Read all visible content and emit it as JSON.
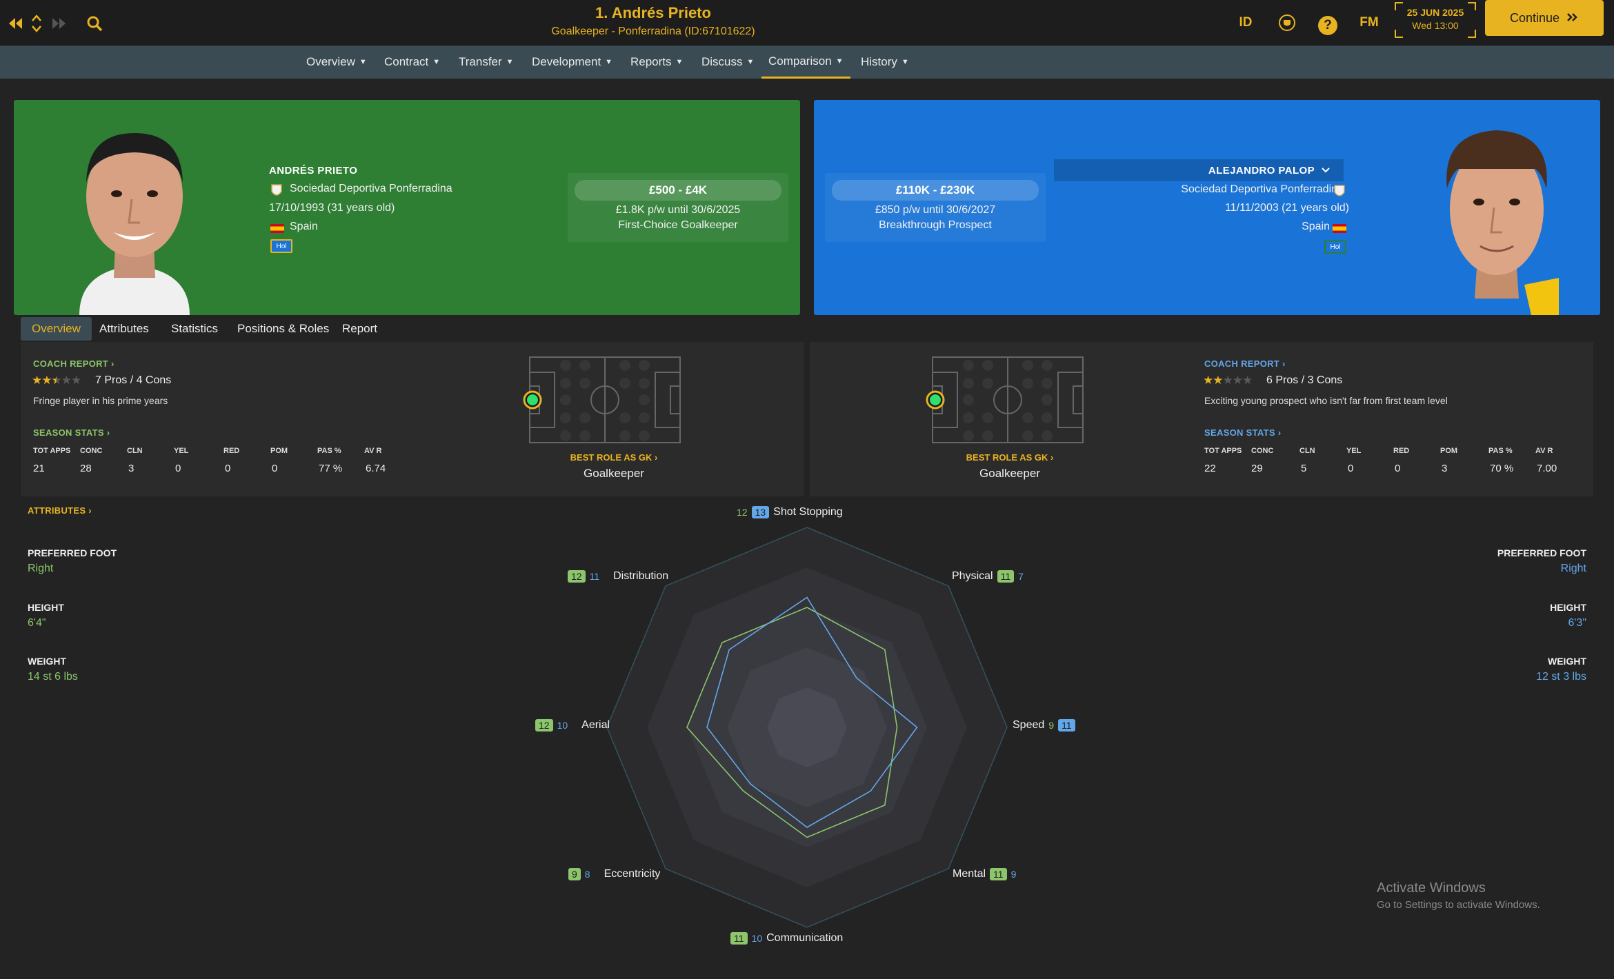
{
  "topbar": {
    "title": "1. Andrés Prieto",
    "subtitle": "Goalkeeper - Ponferradina (ID:67101622)",
    "id_label": "ID",
    "fm_label": "FM",
    "help_label": "?",
    "date": "25 JUN 2025",
    "time": "Wed 13:00",
    "continue_label": "Continue"
  },
  "nav": [
    "Overview",
    "Contract",
    "Transfer",
    "Development",
    "Reports",
    "Discuss",
    "Comparison",
    "History"
  ],
  "nav_active": "Comparison",
  "left_player": {
    "name": "ANDRÉS PRIETO",
    "club": "Sociedad Deportiva Ponferradina",
    "dob": "17/10/1993 (31 years old)",
    "nationality": "Spain",
    "tag": "Hol",
    "value_range": "£500 - £4K",
    "wage": "£1.8K p/w until 30/6/2025",
    "status": "First-Choice Goalkeeper",
    "coach_report": "COACH REPORT",
    "stars": 2.5,
    "pros_cons": "7 Pros / 4 Cons",
    "description": "Fringe player in his prime years",
    "season_stats_title": "SEASON STATS",
    "best_role_title": "BEST ROLE AS GK",
    "best_role": "Goalkeeper",
    "preferred_foot": "Right",
    "height": "6'4\"",
    "weight": "14 st 6 lbs",
    "stats": {
      "TOT APPS": "21",
      "CONC": "28",
      "CLN": "3",
      "YEL": "0",
      "RED": "0",
      "POM": "0",
      "PAS %": "77 %",
      "AV R": "6.74"
    }
  },
  "right_player": {
    "name": "ALEJANDRO PALOP",
    "club": "Sociedad Deportiva Ponferradina",
    "dob": "11/11/2003 (21 years old)",
    "nationality": "Spain",
    "tag": "Hol",
    "value_range": "£110K - £230K",
    "wage": "£850 p/w until 30/6/2027",
    "status": "Breakthrough Prospect",
    "coach_report": "COACH REPORT",
    "stars": 2,
    "pros_cons": "6 Pros / 3 Cons",
    "description": "Exciting young prospect who isn't far from first team level",
    "season_stats_title": "SEASON STATS",
    "best_role_title": "BEST ROLE AS GK",
    "best_role": "Goalkeeper",
    "preferred_foot": "Right",
    "height": "6'3\"",
    "weight": "12 st 3 lbs",
    "stats": {
      "TOT APPS": "22",
      "CONC": "29",
      "CLN": "5",
      "YEL": "0",
      "RED": "0",
      "POM": "3",
      "PAS %": "70 %",
      "AV R": "7.00"
    }
  },
  "subtabs": [
    "Overview",
    "Attributes",
    "Statistics",
    "Positions & Roles",
    "Report"
  ],
  "subtab_active": "Overview",
  "attributes_title": "ATTRIBUTES",
  "labels": {
    "preferred_foot": "PREFERRED FOOT",
    "height": "HEIGHT",
    "weight": "WEIGHT"
  },
  "colors": {
    "left": "#8cc56b",
    "right": "#62a7ea",
    "accent": "#e8b321",
    "left_card": "#2e7e33",
    "right_card": "#1a73d6"
  },
  "chart_data": {
    "type": "radar",
    "max": 20,
    "axes": [
      "Shot Stopping",
      "Physical",
      "Speed",
      "Mental",
      "Communication",
      "Eccentricity",
      "Aerial",
      "Distribution"
    ],
    "series": [
      {
        "name": "ANDRÉS PRIETO",
        "values": [
          12,
          11,
          9,
          11,
          11,
          9,
          12,
          12
        ]
      },
      {
        "name": "ALEJANDRO PALOP",
        "values": [
          13,
          7,
          11,
          9,
          10,
          8,
          10,
          11
        ]
      }
    ]
  },
  "watermark": {
    "line1": "Activate Windows",
    "line2": "Go to Settings to activate Windows."
  }
}
